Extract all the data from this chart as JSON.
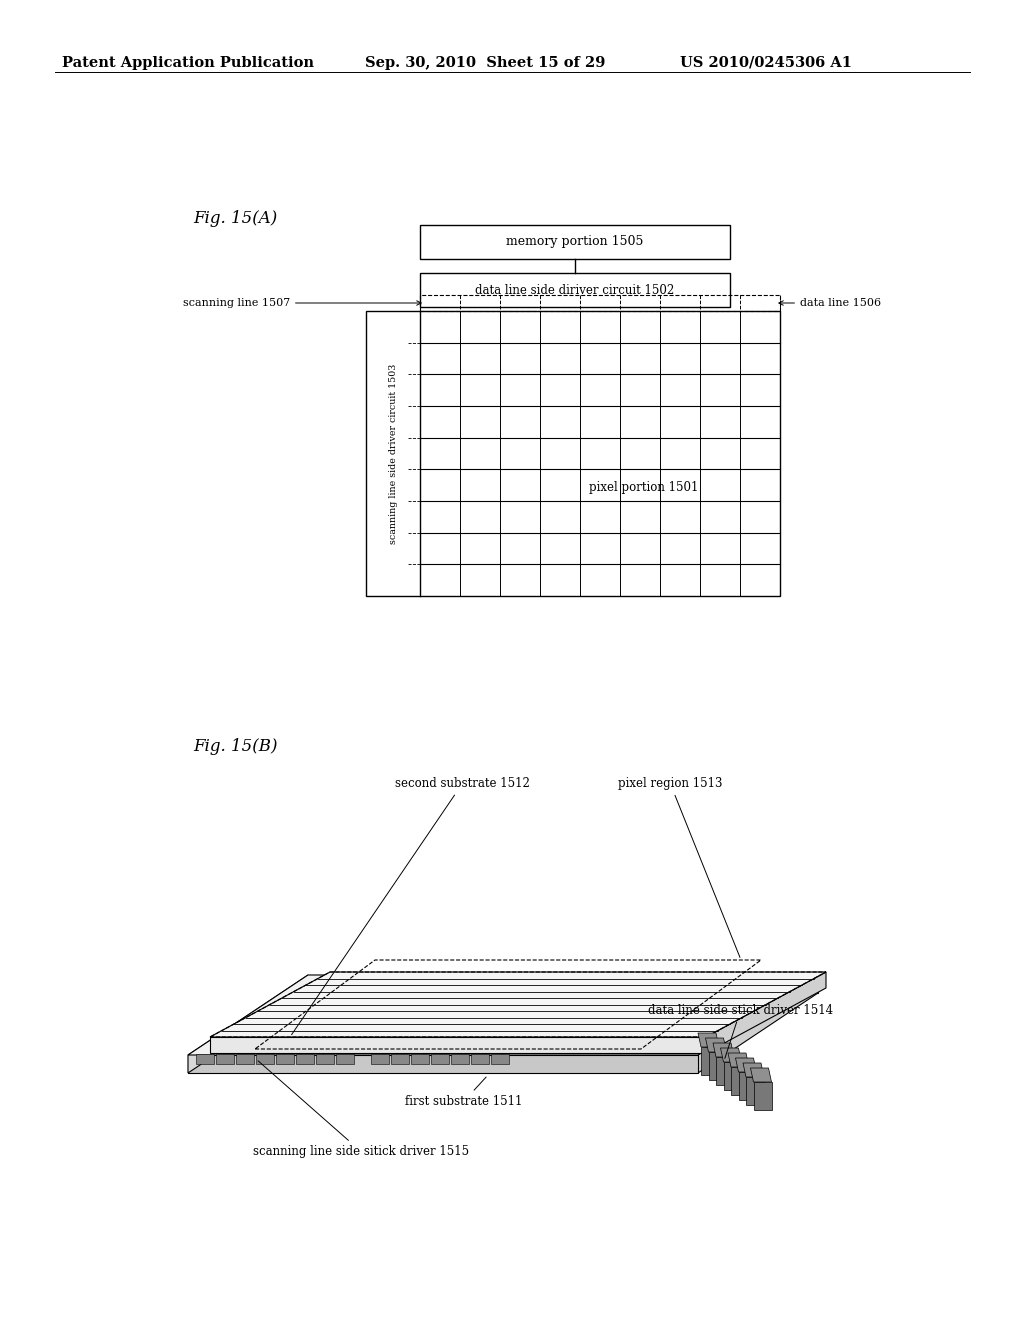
{
  "header_left": "Patent Application Publication",
  "header_mid": "Sep. 30, 2010  Sheet 15 of 29",
  "header_right": "US 2010/0245306 A1",
  "fig_a_label": "Fig. 15(A)",
  "fig_b_label": "Fig. 15(B)",
  "memory_box_label": "memory portion 1505",
  "driver_box_label": "data line side diriver circuit 1502",
  "pixel_label": "pixel portion 1501",
  "scan_line_label": "scanning line 1507",
  "data_line_label": "data line 1506",
  "scan_driver_label": "scanning line side driver circuit 1503",
  "second_substrate_label": "second substrate 1512",
  "pixel_region_label": "pixel region 1513",
  "data_driver_label": "data line side stick driver 1514",
  "first_substrate_label": "first substrate 1511",
  "scan_stick_label": "scanning line side sitick driver 1515",
  "bg_color": "#ffffff",
  "line_color": "#000000",
  "grid_rows": 9,
  "grid_cols": 9
}
